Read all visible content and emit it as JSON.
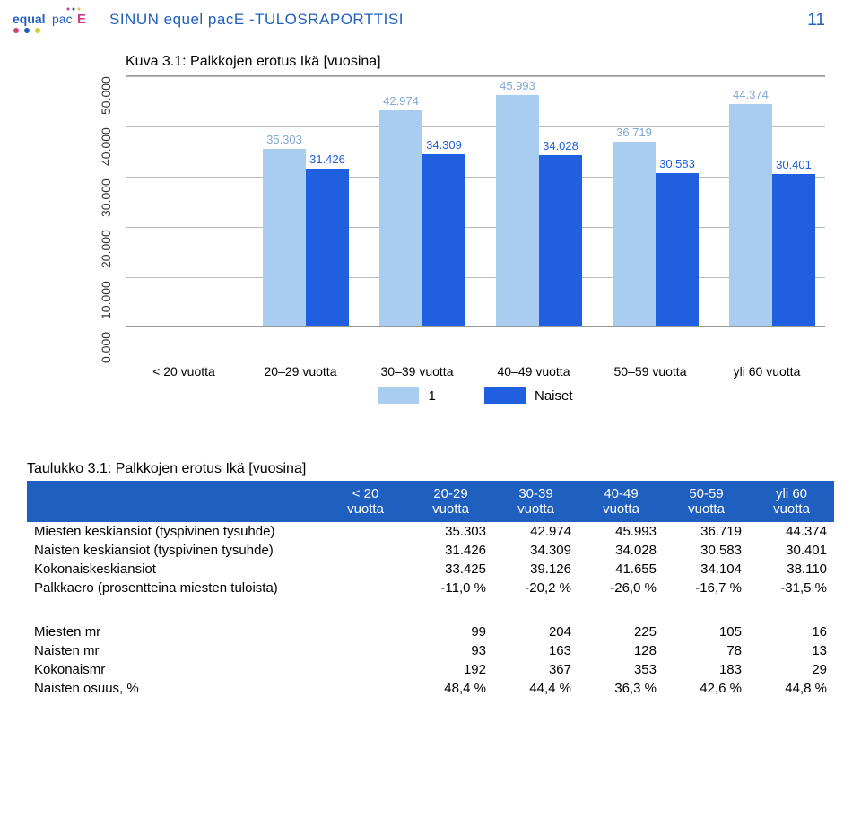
{
  "header": {
    "report_title": "SINUN equel pacE -TULOSRAPORTTISI",
    "page_number": "11"
  },
  "figure": {
    "caption": "Kuva 3.1: Palkkojen erotus Ikä [vuosina]",
    "y_ticks": [
      "0.000",
      "10.000",
      "20.000",
      "30.000",
      "40.000",
      "50.000"
    ],
    "y_max": 50,
    "grid_color": "#bbbbbb",
    "categories": [
      "< 20 vuotta",
      "20–29 vuotta",
      "30–39 vuotta",
      "40–49 vuotta",
      "50–59 vuotta",
      "yli 60 vuotta"
    ],
    "series1_color": "#a8cdf0",
    "series1_label_color": "#7fa8d6",
    "series2_color": "#1f5fe0",
    "series2_label_color": "#1f5fe0",
    "series1_values": [
      null,
      35.303,
      42.974,
      45.993,
      36.719,
      44.374
    ],
    "series1_labels": [
      "",
      "35.303",
      "42.974",
      "45.993",
      "36.719",
      "44.374"
    ],
    "series2_values": [
      null,
      31.426,
      34.309,
      34.028,
      30.583,
      30.401
    ],
    "series2_labels": [
      "",
      "31.426",
      "34.309",
      "34.028",
      "30.583",
      "30.401"
    ],
    "legend": {
      "item1": "1",
      "item2": "Naiset"
    }
  },
  "table1": {
    "title": "Taulukko 3.1: Palkkojen erotus Ikä [vuosina]",
    "headers": [
      "",
      "< 20\nvuotta",
      "20-29\nvuotta",
      "30-39\nvuotta",
      "40-49\nvuotta",
      "50-59\nvuotta",
      "yli 60\nvuotta"
    ],
    "rows": [
      {
        "label": "Miesten keskiansiot (tyspivinen tysuhde)",
        "vals": [
          "",
          "35.303",
          "42.974",
          "45.993",
          "36.719",
          "44.374"
        ]
      },
      {
        "label": "Naisten keskiansiot (tyspivinen tysuhde)",
        "vals": [
          "",
          "31.426",
          "34.309",
          "34.028",
          "30.583",
          "30.401"
        ]
      },
      {
        "label": "Kokonaiskeskiansiot",
        "vals": [
          "",
          "33.425",
          "39.126",
          "41.655",
          "34.104",
          "38.110"
        ]
      },
      {
        "label": "Palkkaero (prosentteina miesten tuloista)",
        "vals": [
          "",
          "-11,0 %",
          "-20,2 %",
          "-26,0 %",
          "-16,7 %",
          "-31,5 %"
        ]
      }
    ]
  },
  "table2": {
    "rows": [
      {
        "label": "Miesten mr",
        "vals": [
          "",
          "99",
          "204",
          "225",
          "105",
          "16"
        ]
      },
      {
        "label": "Naisten mr",
        "vals": [
          "",
          "93",
          "163",
          "128",
          "78",
          "13"
        ]
      },
      {
        "label": "Kokonaismr",
        "vals": [
          "",
          "192",
          "367",
          "353",
          "183",
          "29"
        ]
      },
      {
        "label": "Naisten osuus, %",
        "vals": [
          "",
          "48,4 %",
          "44,4 %",
          "36,3 %",
          "42,6 %",
          "44,8 %"
        ]
      }
    ]
  }
}
